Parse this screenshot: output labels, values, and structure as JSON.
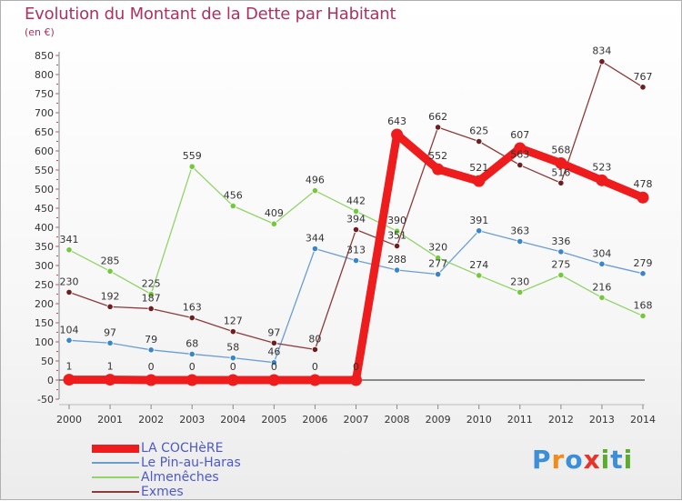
{
  "header": {
    "title": "Evolution du Montant de la Dette par Habitant",
    "unit": "(en €)"
  },
  "logo": {
    "text": "Proxiti",
    "letters": [
      "P",
      "r",
      "o",
      "x",
      "i",
      "t",
      "i"
    ],
    "colors": [
      "#3b8ed8",
      "#f08c1e",
      "#3b8ed8",
      "#e8322a",
      "#5aab2e",
      "#3b8ed8",
      "#5aab2e"
    ]
  },
  "chart_data": {
    "type": "line",
    "title": "Evolution du Montant de la Dette par Habitant",
    "ylabel": "(en €)",
    "xlabel": "",
    "x": [
      2000,
      2001,
      2002,
      2003,
      2004,
      2005,
      2006,
      2007,
      2008,
      2009,
      2010,
      2011,
      2012,
      2013,
      2014
    ],
    "ylim": [
      -50,
      850
    ],
    "ytick_step": 50,
    "grid": false,
    "legend_position": "bottom-left",
    "series": [
      {
        "name": "LA COCHèRE",
        "color": "#ee1c1c",
        "emphasis": true,
        "values": [
          1,
          1,
          0,
          0,
          0,
          0,
          0,
          0,
          643,
          552,
          521,
          607,
          568,
          523,
          478
        ]
      },
      {
        "name": "Le Pin-au-Haras",
        "color": "#6a9ed3",
        "marker": "#3a84c9",
        "values": [
          104,
          97,
          79,
          68,
          58,
          46,
          344,
          313,
          288,
          277,
          391,
          363,
          336,
          304,
          279
        ]
      },
      {
        "name": "Almenêches",
        "color": "#92d46a",
        "marker": "#74c83c",
        "values": [
          341,
          285,
          225,
          559,
          456,
          409,
          496,
          442,
          390,
          320,
          274,
          230,
          275,
          216,
          168
        ]
      },
      {
        "name": "Exmes",
        "color": "#8c3a3a",
        "marker": "#6e1e1e",
        "values": [
          230,
          192,
          187,
          163,
          127,
          97,
          80,
          394,
          351,
          662,
          625,
          563,
          516,
          834,
          767
        ]
      }
    ]
  }
}
